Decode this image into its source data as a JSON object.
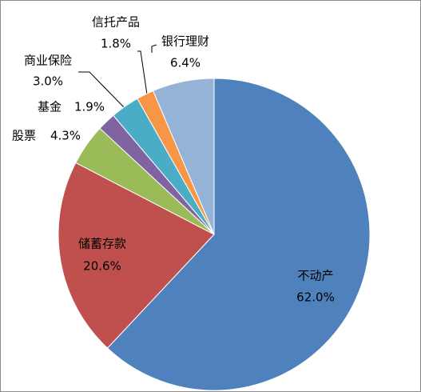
{
  "chart_data": {
    "type": "pie",
    "categories": [
      "不动产",
      "储蓄存款",
      "股票",
      "基金",
      "商业保险",
      "信托产品",
      "银行理财"
    ],
    "values": [
      62.0,
      20.6,
      4.3,
      1.9,
      3.0,
      1.8,
      6.4
    ],
    "value_labels": [
      "62.0%",
      "20.6%",
      "4.3%",
      "1.9%",
      "3.0%",
      "1.8%",
      "6.4%"
    ],
    "colors": [
      "#4F81BD",
      "#C0504D",
      "#9BBB59",
      "#8064A2",
      "#4BACC6",
      "#F79646",
      "#95B3D7"
    ]
  }
}
